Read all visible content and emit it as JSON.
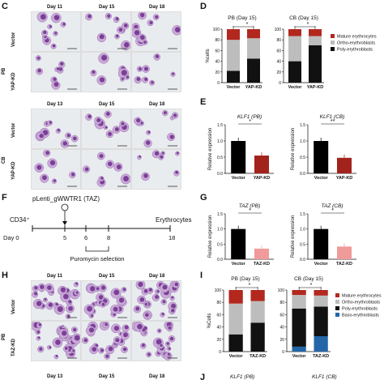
{
  "panels": {
    "C": {
      "label": "C",
      "days_top": [
        "Day 11",
        "Day 15",
        "Day 18"
      ],
      "days_bottom": [
        "Day 13",
        "Day 15",
        "Day 18"
      ],
      "groups": [
        "PB",
        "CB"
      ],
      "rows": [
        "Vector",
        "YAP-KD"
      ]
    },
    "D": {
      "label": "D",
      "legend": [
        "Mature erythrocytes",
        "Ortho-erythroblasts",
        "Poly-erythroblasts"
      ],
      "sig": "*"
    },
    "E": {
      "label": "E",
      "sig_pb": "*",
      "sig_cb": "**"
    },
    "F": {
      "label": "F",
      "construct": "pLenti_gWWTR1 (TAZ)",
      "cell": "CD34⁺",
      "end": "Erythrocytes",
      "day_prefix": "Day",
      "days": [
        "0",
        "5",
        "6",
        "8",
        "18"
      ],
      "selection": "Puromycin selection"
    },
    "G": {
      "label": "G",
      "sig": "*"
    },
    "H": {
      "label": "H",
      "days_top": [
        "Day 11",
        "Day 15",
        "Day 18"
      ],
      "days_bottom": [
        "Day 13",
        "Day 15",
        "Day 18"
      ],
      "groups": [
        "PB"
      ],
      "rows": [
        "Vector",
        "TAZ-KD"
      ]
    },
    "I": {
      "label": "I",
      "legend": [
        "Mature erythrocytes",
        "Ortho-erythroblasts",
        "Poly-erythroblasts",
        "Baso-erythroblasts"
      ],
      "sig": "*"
    },
    "J": {
      "label": "J",
      "title_pb": "KLF1 (PB)",
      "title_cb": "KLF1 (CB)"
    }
  },
  "chart_data": [
    {
      "id": "D-PB",
      "type": "bar",
      "title": "PB (Day 15)",
      "ylabel": "%cells",
      "categories": [
        "Vector",
        "YAP-KD"
      ],
      "ylim": [
        0,
        100
      ],
      "yticks": [
        "0",
        "20",
        "40",
        "60",
        "80",
        "100"
      ],
      "series": [
        {
          "name": "Poly-erythroblasts",
          "values": [
            22,
            45
          ]
        },
        {
          "name": "Ortho-erythroblasts",
          "values": [
            58,
            38
          ]
        },
        {
          "name": "Mature erythrocytes",
          "values": [
            20,
            17
          ]
        }
      ]
    },
    {
      "id": "D-CB",
      "type": "bar",
      "title": "CB (Day 15)",
      "ylabel": "",
      "categories": [
        "Vector",
        "YAP-KD"
      ],
      "ylim": [
        0,
        100
      ],
      "yticks": [
        "0",
        "20",
        "40",
        "60",
        "80",
        "100"
      ],
      "series": [
        {
          "name": "Poly-erythroblasts",
          "values": [
            40,
            70
          ]
        },
        {
          "name": "Ortho-erythroblasts",
          "values": [
            47,
            17
          ]
        },
        {
          "name": "Mature erythrocytes",
          "values": [
            13,
            13
          ]
        }
      ]
    },
    {
      "id": "E-PB",
      "type": "bar",
      "title": "KLF1 (PB)",
      "ylabel": "Relative expression",
      "categories": [
        "Vector",
        "YAP-KD"
      ],
      "ylim": [
        0,
        1.5
      ],
      "yticks": [
        "0.0",
        "0.5",
        "1.0",
        "1.5"
      ],
      "values": [
        1.0,
        0.55
      ]
    },
    {
      "id": "E-CB",
      "type": "bar",
      "title": "KLF1 (CB)",
      "ylabel": "Relative expression",
      "categories": [
        "Vector",
        "YAP-KD"
      ],
      "ylim": [
        0,
        1.5
      ],
      "yticks": [
        "0.0",
        "0.5",
        "1.0",
        "1.5"
      ],
      "values": [
        1.0,
        0.48
      ]
    },
    {
      "id": "G-PB",
      "type": "bar",
      "title": "TAZ (PB)",
      "ylabel": "Relative expression",
      "categories": [
        "Vector",
        "TAZ-KD"
      ],
      "ylim": [
        0,
        1.5
      ],
      "yticks": [
        "0.0",
        "0.5",
        "1.0",
        "1.5"
      ],
      "values": [
        1.0,
        0.35
      ]
    },
    {
      "id": "G-CB",
      "type": "bar",
      "title": "TAZ (CB)",
      "ylabel": "Relative expression",
      "categories": [
        "Vector",
        "TAZ-KD"
      ],
      "ylim": [
        0,
        1.5
      ],
      "yticks": [
        "0.0",
        "0.5",
        "1.0",
        "1.5"
      ],
      "values": [
        1.0,
        0.42
      ]
    },
    {
      "id": "I-PB",
      "type": "bar",
      "title": "PB (Day 15)",
      "ylabel": "%Cells",
      "categories": [
        "Vector",
        "TAZ-KD"
      ],
      "ylim": [
        0,
        100
      ],
      "yticks": [
        "0",
        "20",
        "40",
        "60",
        "80",
        "100"
      ],
      "series": [
        {
          "name": "Baso-erythroblasts",
          "values": [
            0,
            0
          ]
        },
        {
          "name": "Poly-erythroblasts",
          "values": [
            28,
            47
          ]
        },
        {
          "name": "Ortho-erythroblasts",
          "values": [
            50,
            35
          ]
        },
        {
          "name": "Mature erythrocytes",
          "values": [
            22,
            18
          ]
        }
      ]
    },
    {
      "id": "I-CB",
      "type": "bar",
      "title": "CB (Day 15)",
      "ylabel": "",
      "categories": [
        "Vector",
        "TAZ-KD"
      ],
      "ylim": [
        0,
        100
      ],
      "yticks": [
        "0",
        "20",
        "40",
        "60",
        "80",
        "100"
      ],
      "series": [
        {
          "name": "Baso-erythroblasts",
          "values": [
            8,
            25
          ]
        },
        {
          "name": "Poly-erythroblasts",
          "values": [
            62,
            48
          ]
        },
        {
          "name": "Ortho-erythroblasts",
          "values": [
            22,
            18
          ]
        },
        {
          "name": "Mature erythrocytes",
          "values": [
            8,
            9
          ]
        }
      ]
    }
  ],
  "colors": {
    "mature": "#b2281e",
    "ortho": "#bdbdbd",
    "poly": "#111111",
    "baso": "#2366a8",
    "vector": "#000000",
    "kd_dark": "#a2231c",
    "kd_light": "#f19a9a",
    "cell": "#7b3f98",
    "bg_micro": "#e9ecef"
  }
}
